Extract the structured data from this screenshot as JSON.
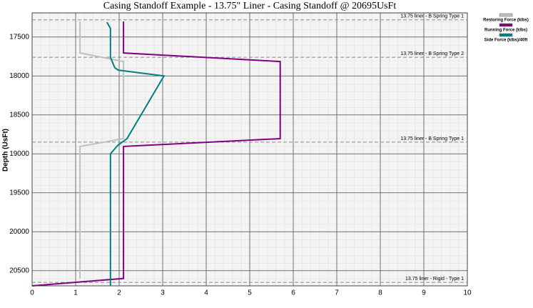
{
  "chart_data": {
    "type": "line",
    "title": "Casing Standoff Example - 13.75\" Liner - Casing Standoff @ 20695UsFt",
    "y_label": "Depth (UsFt)",
    "xlim": [
      0,
      10
    ],
    "xticks": [
      0,
      1,
      2,
      3,
      4,
      5,
      6,
      7,
      8,
      9,
      10
    ],
    "ylim": [
      17190,
      20695
    ],
    "yticks": [
      17500,
      18000,
      18500,
      19000,
      19500,
      20000,
      20500
    ],
    "y_inverted": true,
    "grid": true,
    "series": [
      {
        "name": "Restoring Force (klbs)",
        "color": "#c0c0c0",
        "x": [
          1.1,
          1.1,
          2.1,
          2.1,
          1.1,
          1.1
        ],
        "y": [
          17300,
          17705,
          17815,
          18805,
          18905,
          20600
        ]
      },
      {
        "name": "Running Force (klbs)",
        "color": "#800080",
        "x": [
          2.1,
          2.1,
          5.7,
          5.7,
          2.1,
          2.1,
          0
        ],
        "y": [
          17300,
          17705,
          17815,
          18805,
          18905,
          20600,
          20695
        ]
      },
      {
        "name": "Side Force (klbs)/40ft",
        "color": "#008080",
        "x": [
          1.72,
          1.8,
          1.8,
          1.9,
          1.98,
          3.03,
          2.18,
          1.97,
          1.8,
          1.8
        ],
        "y": [
          17310,
          17390,
          17760,
          17895,
          17925,
          18000,
          18805,
          18890,
          19000,
          20695
        ]
      }
    ],
    "annotations": [
      {
        "text": "13.75 liner - B Spring Type 1",
        "depth": 17280
      },
      {
        "text": "13.75 liner - B Spring Type 2",
        "depth": 17760
      },
      {
        "text": "13.75 liner - B Spring Type 1",
        "depth": 18850
      },
      {
        "text": "13.75 liner - Rigid - Type 1",
        "depth": 20650
      }
    ]
  }
}
